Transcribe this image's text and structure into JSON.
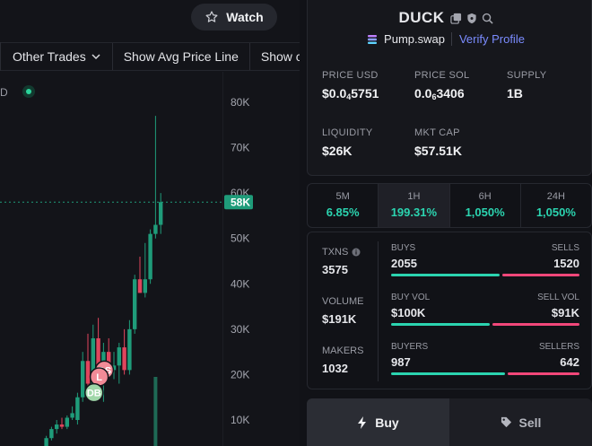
{
  "header": {
    "watch_label": "Watch"
  },
  "toolbar": {
    "items": [
      "Other Trades",
      "Show Avg Price Line",
      "Show c"
    ]
  },
  "chart": {
    "legend_partial": "D",
    "price_labels": [
      "80K",
      "70K",
      "60K",
      "50K",
      "40K",
      "30K",
      "20K",
      "10K"
    ],
    "current_price_label": "58K",
    "markers": [
      "DS",
      "L",
      "DB"
    ],
    "colors": {
      "up": "#1f9c7a",
      "down": "#e0455d",
      "current": "#1f9c7a"
    }
  },
  "chart_data": {
    "type": "candlestick",
    "ylim": [
      0,
      82000
    ],
    "yticks": [
      10000,
      20000,
      30000,
      40000,
      50000,
      60000,
      70000,
      80000
    ],
    "current_price": 58000,
    "candles": [
      {
        "o": 1500,
        "h": 2500,
        "l": 1000,
        "c": 2200
      },
      {
        "o": 2200,
        "h": 4000,
        "l": 2000,
        "c": 3500
      },
      {
        "o": 3500,
        "h": 6500,
        "l": 3000,
        "c": 6000
      },
      {
        "o": 6000,
        "h": 8500,
        "l": 5500,
        "c": 8000
      },
      {
        "o": 8000,
        "h": 10000,
        "l": 7000,
        "c": 9000
      },
      {
        "o": 9000,
        "h": 10500,
        "l": 8000,
        "c": 8500
      },
      {
        "o": 8500,
        "h": 11000,
        "l": 8000,
        "c": 10500
      },
      {
        "o": 10500,
        "h": 13000,
        "l": 10000,
        "c": 11500
      },
      {
        "o": 10000,
        "h": 16000,
        "l": 9000,
        "c": 15000
      },
      {
        "o": 15000,
        "h": 25000,
        "l": 14000,
        "c": 23000
      },
      {
        "o": 23000,
        "h": 29000,
        "l": 17000,
        "c": 18000
      },
      {
        "o": 18000,
        "h": 31000,
        "l": 17000,
        "c": 28000
      },
      {
        "o": 28000,
        "h": 32500,
        "l": 19000,
        "c": 20000
      },
      {
        "o": 20000,
        "h": 27000,
        "l": 14000,
        "c": 25000
      },
      {
        "o": 25000,
        "h": 28000,
        "l": 20000,
        "c": 21000
      },
      {
        "o": 21000,
        "h": 25000,
        "l": 19000,
        "c": 22000
      },
      {
        "o": 22000,
        "h": 27000,
        "l": 18000,
        "c": 26000
      },
      {
        "o": 26000,
        "h": 30000,
        "l": 20000,
        "c": 21000
      },
      {
        "o": 21000,
        "h": 32000,
        "l": 20000,
        "c": 30000
      },
      {
        "o": 30000,
        "h": 42000,
        "l": 29000,
        "c": 41000
      },
      {
        "o": 41000,
        "h": 46000,
        "l": 38000,
        "c": 38000
      },
      {
        "o": 38000,
        "h": 49000,
        "l": 37000,
        "c": 41000
      },
      {
        "o": 41000,
        "h": 52000,
        "l": 40000,
        "c": 51000
      },
      {
        "o": 51000,
        "h": 77000,
        "l": 50000,
        "c": 53000
      },
      {
        "o": 53000,
        "h": 60000,
        "l": 51000,
        "c": 58000
      }
    ],
    "markers": [
      {
        "label": "DS",
        "candle": 8,
        "price": 21000,
        "color": "#f28b97"
      },
      {
        "label": "L",
        "candle": 7,
        "price": 19500,
        "color": "#f28b97"
      },
      {
        "label": "DB",
        "candle": 6,
        "price": 16000,
        "color": "#9fd6a8"
      }
    ],
    "volume": [
      {
        "candle": 23,
        "value": 0.8
      }
    ]
  },
  "token": {
    "name": "DUCK",
    "platform": "Pump.swap",
    "verify": "Verify Profile"
  },
  "stats": {
    "price_usd_label": "PRICE USD",
    "price_usd_main": "$0.0",
    "price_usd_sub": "4",
    "price_usd_tail": "5751",
    "price_sol_label": "PRICE SOL",
    "price_sol_main": "0.0",
    "price_sol_sub": "6",
    "price_sol_tail": "3406",
    "supply_label": "SUPPLY",
    "supply": "1B",
    "liquidity_label": "LIQUIDITY",
    "liquidity": "$26K",
    "mktcap_label": "MKT CAP",
    "mktcap": "$57.51K"
  },
  "timeframes": [
    {
      "label": "5M",
      "value": "6.85%"
    },
    {
      "label": "1H",
      "value": "199.31%"
    },
    {
      "label": "6H",
      "value": "1,050%"
    },
    {
      "label": "24H",
      "value": "1,050%"
    }
  ],
  "metrics": {
    "txns_label": "TXNS",
    "txns": "3575",
    "volume_label": "VOLUME",
    "volume": "$191K",
    "makers_label": "MAKERS",
    "makers": "1032",
    "buys_label": "BUYS",
    "buys": "2055",
    "sells_label": "SELLS",
    "sells": "1520",
    "buyvol_label": "BUY VOL",
    "buyvol": "$100K",
    "sellvol_label": "SELL VOL",
    "sellvol": "$91K",
    "buyers_label": "BUYERS",
    "buyers": "987",
    "sellers_label": "SELLERS",
    "sellers": "642",
    "buys_frac": 0.575,
    "buyvol_frac": 0.524,
    "buyers_frac": 0.606
  },
  "trade": {
    "buy_label": "Buy",
    "sell_label": "Sell"
  }
}
